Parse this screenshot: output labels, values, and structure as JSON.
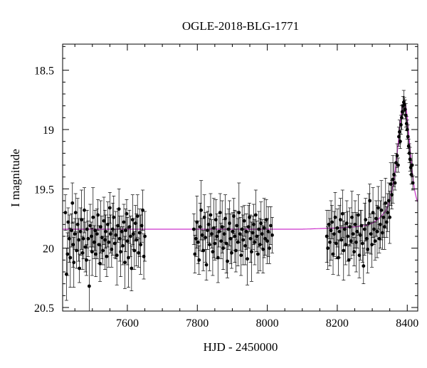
{
  "chart_data": {
    "type": "scatter",
    "title": "OGLE-2018-BLG-1771",
    "xlabel": "HJD - 2450000",
    "ylabel": "I magnitude",
    "xlim": [
      7415,
      8430
    ],
    "ylim": [
      20.53,
      18.28
    ],
    "y_inverted": true,
    "xticks": [
      7600,
      7800,
      8000,
      8200,
      8400
    ],
    "yticks": [
      18.5,
      19,
      19.5,
      20,
      20.5
    ],
    "grid": false,
    "colors": {
      "points": "#000000",
      "errorbars": "#000000",
      "model": "#cc33cc"
    },
    "series": [
      {
        "points": [
          [
            7423,
            19.7
          ],
          [
            7426,
            20.22
          ],
          [
            7429,
            20.05
          ],
          [
            7431,
            19.78
          ],
          [
            7434,
            19.92
          ],
          [
            7437,
            20.08
          ],
          [
            7440,
            19.85
          ],
          [
            7443,
            19.62
          ],
          [
            7445,
            19.97
          ],
          [
            7447,
            20.12
          ],
          [
            7450,
            19.88
          ],
          [
            7452,
            19.7
          ],
          [
            7455,
            20.02
          ],
          [
            7458,
            19.8
          ],
          [
            7461,
            19.93
          ],
          [
            7463,
            20.17
          ],
          [
            7466,
            19.86
          ],
          [
            7469,
            19.76
          ],
          [
            7472,
            20.04
          ],
          [
            7474,
            19.92
          ],
          [
            7477,
            19.68
          ],
          [
            7480,
            19.99
          ],
          [
            7483,
            20.1
          ],
          [
            7485,
            19.84
          ],
          [
            7488,
            19.92
          ],
          [
            7491,
            20.32
          ],
          [
            7494,
            19.81
          ],
          [
            7497,
            19.9
          ],
          [
            7499,
            20.03
          ],
          [
            7502,
            19.74
          ],
          [
            7505,
            19.95
          ],
          [
            7508,
            19.85
          ],
          [
            7510,
            20.05
          ],
          [
            7513,
            19.88
          ],
          [
            7516,
            19.72
          ],
          [
            7519,
            19.97
          ],
          [
            7522,
            20.13
          ],
          [
            7524,
            19.82
          ],
          [
            7527,
            19.91
          ],
          [
            7530,
            20.02
          ],
          [
            7533,
            19.77
          ],
          [
            7536,
            19.93
          ],
          [
            7538,
            19.86
          ],
          [
            7541,
            20.07
          ],
          [
            7544,
            19.8
          ],
          [
            7547,
            19.95
          ],
          [
            7550,
            19.66
          ],
          [
            7552,
            19.88
          ],
          [
            7555,
            20.01
          ],
          [
            7558,
            19.84
          ],
          [
            7561,
            19.74
          ],
          [
            7564,
            19.96
          ],
          [
            7567,
            19.89
          ],
          [
            7570,
            20.06
          ],
          [
            7573,
            19.81
          ],
          [
            7576,
            19.67
          ],
          [
            7578,
            19.92
          ],
          [
            7581,
            20.03
          ],
          [
            7584,
            19.86
          ],
          [
            7587,
            19.98
          ],
          [
            7590,
            19.78
          ],
          [
            7593,
            20.12
          ],
          [
            7595,
            19.85
          ],
          [
            7598,
            19.71
          ],
          [
            7600,
            19.94
          ],
          [
            7603,
            20.08
          ],
          [
            7606,
            19.82
          ],
          [
            7609,
            19.9
          ],
          [
            7612,
            20.17
          ],
          [
            7615,
            19.76
          ],
          [
            7617,
            19.88
          ],
          [
            7620,
            20.02
          ],
          [
            7623,
            19.79
          ],
          [
            7626,
            19.93
          ],
          [
            7629,
            19.73
          ],
          [
            7632,
            20.04
          ],
          [
            7635,
            19.87
          ],
          [
            7638,
            19.97
          ],
          [
            7641,
            19.81
          ],
          [
            7644,
            19.68
          ],
          [
            7647,
            20.07
          ],
          [
            7650,
            19.9
          ],
          [
            7790,
            19.84
          ],
          [
            7793,
            20.05
          ],
          [
            7796,
            19.92
          ],
          [
            7799,
            19.78
          ],
          [
            7802,
            19.95
          ],
          [
            7805,
            20.1
          ],
          [
            7808,
            19.82
          ],
          [
            7811,
            19.68
          ],
          [
            7814,
            19.89
          ],
          [
            7817,
            20.02
          ],
          [
            7820,
            19.74
          ],
          [
            7823,
            19.91
          ],
          [
            7826,
            20.14
          ],
          [
            7829,
            19.85
          ],
          [
            7832,
            19.8
          ],
          [
            7835,
            19.97
          ],
          [
            7838,
            19.72
          ],
          [
            7841,
            19.88
          ],
          [
            7844,
            20.03
          ],
          [
            7847,
            19.83
          ],
          [
            7850,
            19.96
          ],
          [
            7853,
            19.76
          ],
          [
            7856,
            19.9
          ],
          [
            7859,
            20.08
          ],
          [
            7862,
            19.86
          ],
          [
            7865,
            19.7
          ],
          [
            7868,
            19.94
          ],
          [
            7871,
            19.82
          ],
          [
            7874,
            20.0
          ],
          [
            7877,
            19.88
          ],
          [
            7880,
            19.75
          ],
          [
            7883,
            19.96
          ],
          [
            7886,
            20.11
          ],
          [
            7889,
            19.84
          ],
          [
            7892,
            19.79
          ],
          [
            7895,
            19.92
          ],
          [
            7898,
            20.04
          ],
          [
            7901,
            19.86
          ],
          [
            7904,
            19.73
          ],
          [
            7907,
            19.9
          ],
          [
            7910,
            20.02
          ],
          [
            7913,
            19.81
          ],
          [
            7916,
            19.95
          ],
          [
            7919,
            19.7
          ],
          [
            7922,
            19.88
          ],
          [
            7925,
            20.06
          ],
          [
            7928,
            19.84
          ],
          [
            7931,
            19.93
          ],
          [
            7934,
            19.77
          ],
          [
            7937,
            19.98
          ],
          [
            7940,
            19.86
          ],
          [
            7943,
            20.09
          ],
          [
            7946,
            19.82
          ],
          [
            7949,
            19.74
          ],
          [
            7952,
            19.92
          ],
          [
            7955,
            20.03
          ],
          [
            7958,
            19.87
          ],
          [
            7961,
            19.8
          ],
          [
            7964,
            19.95
          ],
          [
            7967,
            19.72
          ],
          [
            7970,
            19.9
          ],
          [
            7973,
            20.05
          ],
          [
            7976,
            19.84
          ],
          [
            7979,
            19.97
          ],
          [
            7982,
            19.79
          ],
          [
            7985,
            19.88
          ],
          [
            7988,
            20.01
          ],
          [
            7991,
            19.83
          ],
          [
            7994,
            19.92
          ],
          [
            7997,
            19.76
          ],
          [
            8000,
            19.94
          ],
          [
            8003,
            19.86
          ],
          [
            8006,
            20.0
          ],
          [
            8010,
            19.81
          ],
          [
            8014,
            19.89
          ],
          [
            8170,
            19.9
          ],
          [
            8173,
            20.0
          ],
          [
            8176,
            19.8
          ],
          [
            8179,
            19.95
          ],
          [
            8182,
            19.85
          ],
          [
            8185,
            19.78
          ],
          [
            8188,
            20.05
          ],
          [
            8191,
            19.88
          ],
          [
            8194,
            19.74
          ],
          [
            8197,
            19.96
          ],
          [
            8200,
            19.83
          ],
          [
            8203,
            20.08
          ],
          [
            8206,
            19.86
          ],
          [
            8209,
            19.76
          ],
          [
            8212,
            19.93
          ],
          [
            8215,
            19.71
          ],
          [
            8218,
            20.02
          ],
          [
            8221,
            19.84
          ],
          [
            8224,
            19.97
          ],
          [
            8227,
            19.79
          ],
          [
            8230,
            19.9
          ],
          [
            8233,
            20.1
          ],
          [
            8236,
            19.82
          ],
          [
            8239,
            19.94
          ],
          [
            8242,
            19.74
          ],
          [
            8245,
            19.88
          ],
          [
            8248,
            20.03
          ],
          [
            8251,
            19.8
          ],
          [
            8254,
            19.95
          ],
          [
            8257,
            19.86
          ],
          [
            8260,
            19.72
          ],
          [
            8263,
            20.06
          ],
          [
            8266,
            19.89
          ],
          [
            8269,
            19.81
          ],
          [
            8272,
            19.96
          ],
          [
            8275,
            20.15
          ],
          [
            8278,
            19.84
          ],
          [
            8281,
            19.76
          ],
          [
            8284,
            19.92
          ],
          [
            8287,
            20.01
          ],
          [
            8290,
            19.79
          ],
          [
            8293,
            19.6
          ],
          [
            8296,
            19.88
          ],
          [
            8299,
            19.97
          ],
          [
            8302,
            19.7
          ],
          [
            8305,
            19.84
          ],
          [
            8308,
            19.94
          ],
          [
            8311,
            19.75
          ],
          [
            8314,
            19.86
          ],
          [
            8317,
            19.66
          ],
          [
            8320,
            19.92
          ],
          [
            8323,
            19.8
          ],
          [
            8326,
            19.68
          ],
          [
            8329,
            19.87
          ],
          [
            8332,
            19.74
          ],
          [
            8335,
            19.82
          ],
          [
            8338,
            19.62
          ],
          [
            8341,
            19.78
          ],
          [
            8344,
            19.7
          ],
          [
            8347,
            19.6
          ],
          [
            8350,
            19.74
          ],
          [
            8353,
            19.46
          ],
          [
            8356,
            19.55
          ],
          [
            8359,
            19.42
          ],
          [
            8362,
            19.38
          ],
          [
            8365,
            19.45
          ],
          [
            8368,
            19.28
          ],
          [
            8371,
            19.22
          ],
          [
            8374,
            19.3
          ],
          [
            8376,
            19.06
          ],
          [
            8378,
            19.02
          ],
          [
            8380,
            19.1
          ],
          [
            8382,
            18.96
          ],
          [
            8384,
            18.9
          ],
          [
            8386,
            18.85
          ],
          [
            8388,
            18.8
          ],
          [
            8390,
            18.77
          ],
          [
            8392,
            18.79
          ],
          [
            8394,
            18.83
          ],
          [
            8396,
            18.88
          ],
          [
            8398,
            18.95
          ],
          [
            8400,
            19.0
          ],
          [
            8402,
            19.06
          ],
          [
            8404,
            19.14
          ],
          [
            8406,
            19.2
          ],
          [
            8408,
            19.25
          ],
          [
            8410,
            19.32
          ],
          [
            8412,
            19.38
          ],
          [
            8414,
            19.3
          ],
          [
            8416,
            19.45
          ]
        ]
      }
    ],
    "model": {
      "baseline": 19.84,
      "x": [
        7415,
        8100,
        8200,
        8250,
        8280,
        8300,
        8320,
        8340,
        8350,
        8360,
        8366,
        8372,
        8378,
        8384,
        8388,
        8392,
        8396,
        8400,
        8405,
        8410,
        8416,
        8422,
        8430
      ],
      "y": [
        19.84,
        19.84,
        19.83,
        19.82,
        19.81,
        19.79,
        19.75,
        19.68,
        19.6,
        19.46,
        19.34,
        19.18,
        18.99,
        18.83,
        18.78,
        18.77,
        18.8,
        18.9,
        19.06,
        19.23,
        19.4,
        19.53,
        19.62
      ]
    }
  }
}
